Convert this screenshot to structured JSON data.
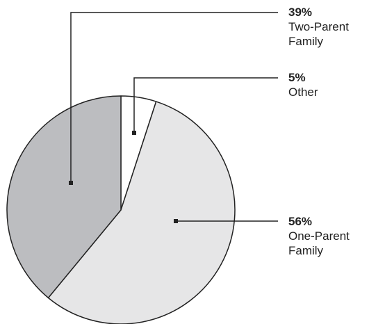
{
  "chart_data": {
    "type": "pie",
    "categories": [
      "Other",
      "One-Parent Family",
      "Two-Parent Family"
    ],
    "values": [
      5,
      56,
      39
    ],
    "value_labels": [
      "5%",
      "56%",
      "39%"
    ],
    "colors": [
      "#ffffff",
      "#e6e6e7",
      "#bcbdc0"
    ]
  }
}
